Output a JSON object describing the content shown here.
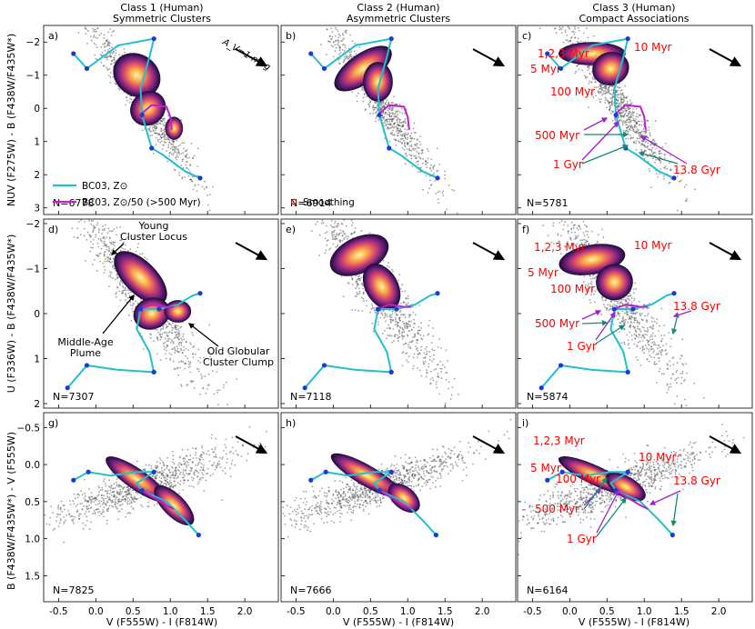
{
  "figure": {
    "columns": [
      {
        "title": "Class 1 (Human)",
        "subtitle": "Symmetric Clusters"
      },
      {
        "title": "Class 2 (Human)",
        "subtitle": "Asymmetric Clusters"
      },
      {
        "title": "Class 3 (Human)",
        "subtitle": "Compact Associations"
      }
    ],
    "xlabel": "V (F555W) - I (F814W)",
    "ylabels": [
      "NUV (F275W) - B (F438W/F435W*)",
      "U (F336W) - B (F438W/F435W*)",
      "B (F438W/F435W*) - V (F555W)"
    ],
    "reddening_label": "A_V=1 mag",
    "legend": {
      "bc03_solar": "BC03, Z⊙",
      "bc03_sub": "BC03, Z⊙/50 (>500 Myr)",
      "smoothing": "Smoothing"
    },
    "annotations_d": {
      "young_locus": [
        "Young",
        "Cluster Locus"
      ],
      "middle_age": [
        "Middle-Age",
        "Plume"
      ],
      "old_gc": [
        "Old Globular",
        "Cluster Clump"
      ]
    },
    "age_labels": {
      "myr123": "1,2,3 Myr",
      "myr5": "5 Myr",
      "myr10": "10 Myr",
      "myr100": "100 Myr",
      "myr500": "500 Myr",
      "gyr1": "1 Gyr",
      "gyr138": "13.8 Gyr"
    },
    "colors": {
      "solar_track": "#20c0d0",
      "sub_track": "#c020c8",
      "age_text": "#ff0000",
      "green_arrow": "#138a7a",
      "purple_arrow": "#a020d0",
      "points": "#555555"
    }
  },
  "chart_data": [
    {
      "panel": "a",
      "type": "scatter",
      "N": 6778,
      "row": "NUV-B",
      "column": "Class 1",
      "xlim": [
        -0.7,
        2.45
      ],
      "ylim": [
        3.2,
        -2.5
      ]
    },
    {
      "panel": "b",
      "type": "scatter",
      "N": 6914,
      "row": "NUV-B",
      "column": "Class 2",
      "xlim": [
        -0.7,
        2.45
      ],
      "ylim": [
        3.2,
        -2.5
      ]
    },
    {
      "panel": "c",
      "type": "scatter",
      "N": 5781,
      "row": "NUV-B",
      "column": "Class 3",
      "xlim": [
        -0.7,
        2.45
      ],
      "ylim": [
        3.2,
        -2.5
      ]
    },
    {
      "panel": "d",
      "type": "scatter",
      "N": 7307,
      "row": "U-B",
      "column": "Class 1",
      "xlim": [
        -0.7,
        2.45
      ],
      "ylim": [
        2.1,
        -2.1
      ]
    },
    {
      "panel": "e",
      "type": "scatter",
      "N": 7118,
      "row": "U-B",
      "column": "Class 2",
      "xlim": [
        -0.7,
        2.45
      ],
      "ylim": [
        2.1,
        -2.1
      ]
    },
    {
      "panel": "f",
      "type": "scatter",
      "N": 5874,
      "row": "U-B",
      "column": "Class 3",
      "xlim": [
        -0.7,
        2.45
      ],
      "ylim": [
        2.1,
        -2.1
      ]
    },
    {
      "panel": "g",
      "type": "scatter",
      "N": 7825,
      "row": "B-V",
      "column": "Class 1",
      "xlim": [
        -0.7,
        2.45
      ],
      "ylim": [
        1.85,
        -0.7
      ]
    },
    {
      "panel": "h",
      "type": "scatter",
      "N": 7666,
      "row": "B-V",
      "column": "Class 2",
      "xlim": [
        -0.7,
        2.45
      ],
      "ylim": [
        1.85,
        -0.7
      ]
    },
    {
      "panel": "i",
      "type": "scatter",
      "N": 6164,
      "row": "B-V",
      "column": "Class 3",
      "xlim": [
        -0.7,
        2.45
      ],
      "ylim": [
        1.85,
        -0.7
      ]
    }
  ],
  "axes": {
    "x_ticks": [
      "-0.5",
      "0.0",
      "0.5",
      "1.0",
      "1.5",
      "2.0"
    ],
    "x_tick_values": [
      -0.5,
      0.0,
      0.5,
      1.0,
      1.5,
      2.0
    ],
    "row_y_ticks": [
      {
        "values": [
          -2,
          -1,
          0,
          1,
          2,
          3
        ],
        "labels": [
          "−2",
          "−1",
          "0",
          "1",
          "2",
          "3"
        ]
      },
      {
        "values": [
          -2,
          -1,
          0,
          1,
          2
        ],
        "labels": [
          "−2",
          "−1",
          "0",
          "1",
          "2"
        ]
      },
      {
        "values": [
          -0.5,
          0.0,
          0.5,
          1.0,
          1.5
        ],
        "labels": [
          "−0.5",
          "0.0",
          "0.5",
          "1.0",
          "1.5"
        ]
      }
    ]
  },
  "tracks": {
    "solar": {
      "row0": [
        [
          -0.3,
          -1.65
        ],
        [
          -0.12,
          -1.2
        ],
        [
          0.3,
          -1.9
        ],
        [
          0.78,
          -2.1
        ],
        [
          0.72,
          -1.55
        ],
        [
          0.6,
          -0.6
        ],
        [
          0.62,
          0.2
        ],
        [
          0.75,
          1.2
        ],
        [
          0.9,
          1.4
        ],
        [
          1.2,
          1.9
        ],
        [
          1.4,
          2.1
        ]
      ],
      "row1": [
        [
          -0.38,
          1.65
        ],
        [
          -0.12,
          1.15
        ],
        [
          0.3,
          1.25
        ],
        [
          0.78,
          1.3
        ],
        [
          0.72,
          0.85
        ],
        [
          0.55,
          0.35
        ],
        [
          0.6,
          -0.1
        ],
        [
          0.85,
          -0.1
        ],
        [
          1.1,
          -0.2
        ],
        [
          1.3,
          -0.4
        ],
        [
          1.4,
          -0.45
        ]
      ],
      "row2": [
        [
          -0.3,
          0.21
        ],
        [
          -0.1,
          0.1
        ],
        [
          0.2,
          0.15
        ],
        [
          0.55,
          0.1
        ],
        [
          0.78,
          0.1
        ],
        [
          0.55,
          0.25
        ],
        [
          0.62,
          0.35
        ],
        [
          0.95,
          0.5
        ],
        [
          1.2,
          0.75
        ],
        [
          1.38,
          0.95
        ]
      ]
    },
    "sub": {
      "row0": [
        [
          0.62,
          0.15
        ],
        [
          0.75,
          -0.1
        ],
        [
          0.95,
          -0.05
        ],
        [
          1.0,
          0.25
        ],
        [
          1.02,
          0.65
        ]
      ],
      "row1": [
        [
          0.6,
          -0.1
        ],
        [
          0.75,
          -0.2
        ],
        [
          0.95,
          -0.15
        ],
        [
          1.05,
          -0.15
        ]
      ],
      "row2": [
        [
          0.62,
          0.35
        ],
        [
          0.78,
          0.45
        ],
        [
          0.95,
          0.55
        ],
        [
          1.05,
          0.6
        ]
      ]
    },
    "solar_markers": {
      "row0": [
        [
          -0.3,
          -1.65
        ],
        [
          -0.12,
          -1.2
        ],
        [
          0.78,
          -2.1
        ],
        [
          0.62,
          0.2
        ],
        [
          0.75,
          1.2
        ],
        [
          1.4,
          2.1
        ]
      ],
      "row1": [
        [
          -0.38,
          1.65
        ],
        [
          -0.12,
          1.15
        ],
        [
          0.78,
          1.3
        ],
        [
          0.6,
          -0.1
        ],
        [
          0.85,
          -0.1
        ],
        [
          1.4,
          -0.45
        ]
      ],
      "row2": [
        [
          -0.3,
          0.21
        ],
        [
          -0.1,
          0.1
        ],
        [
          0.78,
          0.1
        ],
        [
          0.62,
          0.35
        ],
        [
          1.38,
          0.95
        ]
      ]
    }
  }
}
